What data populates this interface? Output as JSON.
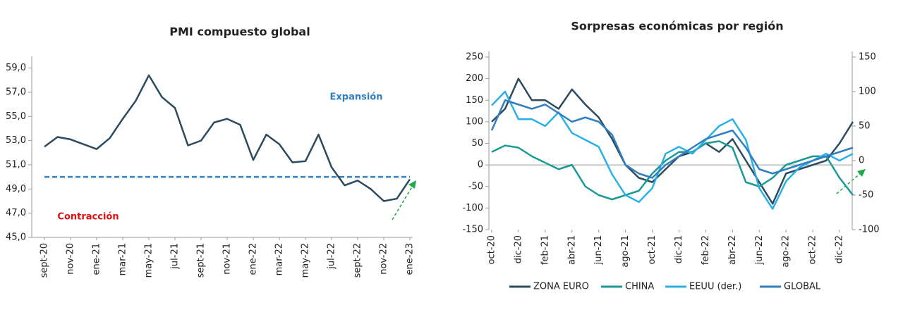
{
  "chart_data": [
    {
      "type": "line",
      "title": "PMI compuesto global",
      "categories": [
        "sept-20",
        null,
        "nov-20",
        null,
        "ene-21",
        null,
        "mar-21",
        null,
        "may-21",
        null,
        "jul-21",
        null,
        "sept-21",
        null,
        "nov-21",
        null,
        "ene-22",
        null,
        "mar-22",
        null,
        "may-22",
        null,
        "jul-22",
        null,
        "sept-22",
        null,
        "nov-22",
        null,
        "ene-23"
      ],
      "series": [
        {
          "name": "PMI compuesto global",
          "color": "#2d4a5e",
          "values": [
            52.5,
            53.3,
            53.1,
            52.7,
            52.3,
            53.2,
            54.8,
            56.3,
            58.4,
            56.6,
            55.7,
            52.6,
            53.0,
            54.5,
            54.8,
            54.3,
            51.4,
            53.5,
            52.7,
            51.2,
            51.3,
            53.5,
            50.8,
            49.3,
            49.7,
            49.0,
            48.0,
            48.2,
            49.8
          ]
        }
      ],
      "ylim": [
        45,
        59.5
      ],
      "yticks": [
        {
          "value": 45,
          "label": "45,0"
        },
        {
          "value": 47,
          "label": "47,0"
        },
        {
          "value": 49,
          "label": "49,0"
        },
        {
          "value": 51,
          "label": "51,0"
        },
        {
          "value": 53,
          "label": "53,0"
        },
        {
          "value": 55,
          "label": "55,0"
        },
        {
          "value": 57,
          "label": "57,0"
        },
        {
          "value": 59,
          "label": "59,0"
        }
      ],
      "reference_line": 50,
      "reference_color": "#2f7fc1",
      "annotations": [
        "Expansión",
        "Contracción"
      ]
    },
    {
      "type": "line",
      "title": "Sorpresas económicas por región",
      "categories": [
        "oct-20",
        null,
        "dic-20",
        null,
        "feb-21",
        null,
        "abr-21",
        null,
        "jun-21",
        null,
        "ago-21",
        null,
        "oct-21",
        null,
        "dic-21",
        null,
        "feb-22",
        null,
        "abr-22",
        null,
        "jun-22",
        null,
        "ago-22",
        null,
        "oct-22",
        null,
        "dic-22",
        null
      ],
      "series": [
        {
          "name": "ZONA EURO",
          "color": "#2d4a5e",
          "values": [
            100,
            130,
            200,
            150,
            150,
            130,
            175,
            140,
            110,
            60,
            0,
            -30,
            -40,
            -10,
            20,
            30,
            50,
            30,
            60,
            10,
            -40,
            -90,
            -20,
            -10,
            0,
            10,
            50,
            100
          ]
        },
        {
          "name": "CHINA",
          "color": "#1a9a94",
          "values": [
            30,
            45,
            40,
            20,
            5,
            -10,
            0,
            -50,
            -70,
            -80,
            -70,
            -60,
            -20,
            10,
            30,
            30,
            50,
            55,
            40,
            -40,
            -50,
            -30,
            0,
            10,
            20,
            20,
            -30,
            -70
          ]
        },
        {
          "name": "EEUU (der.)",
          "color": "#2ab0e6",
          "axis": "y2",
          "values": [
            80,
            100,
            60,
            60,
            50,
            70,
            40,
            30,
            20,
            -20,
            -50,
            -60,
            -40,
            10,
            20,
            10,
            30,
            50,
            60,
            30,
            -40,
            -70,
            -30,
            -10,
            0,
            10,
            0,
            10
          ]
        },
        {
          "name": "GLOBAL",
          "color": "#2f7fc1",
          "values": [
            80,
            150,
            140,
            130,
            140,
            120,
            100,
            110,
            100,
            70,
            0,
            -20,
            -30,
            0,
            20,
            40,
            60,
            70,
            80,
            40,
            -10,
            -20,
            -10,
            0,
            10,
            20,
            30,
            40
          ]
        }
      ],
      "ylim": [
        -150,
        250
      ],
      "yticks": [
        -150,
        -100,
        -50,
        0,
        50,
        100,
        150,
        200,
        250
      ],
      "y2lim": [
        -100,
        150
      ],
      "y2ticks": [
        -100,
        -50,
        0,
        50,
        100,
        150
      ]
    }
  ]
}
